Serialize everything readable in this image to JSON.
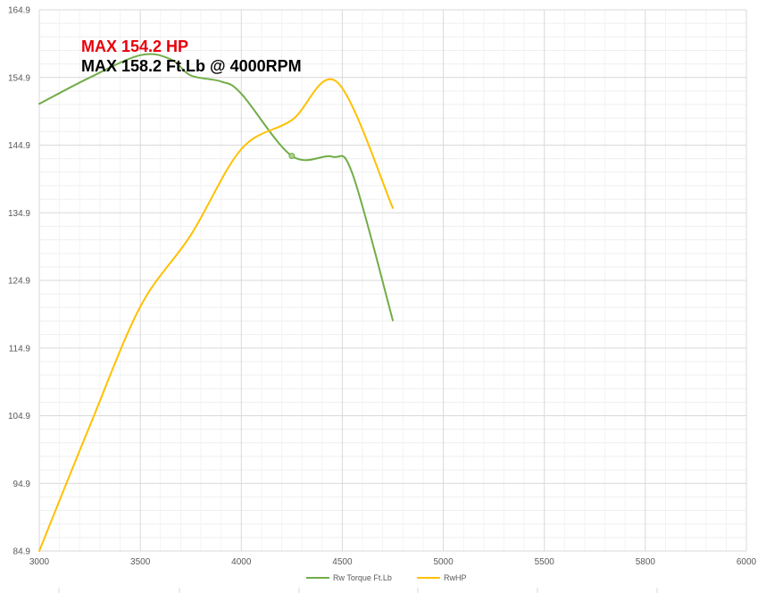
{
  "chart_data": {
    "type": "line",
    "title": "",
    "xlabel": "",
    "ylabel": "",
    "xlim": [
      3000,
      6000
    ],
    "ylim": [
      84.9,
      164.9
    ],
    "x_ticks": [
      "3000",
      "3500",
      "4000",
      "4500",
      "5000",
      "5500",
      "5800",
      "6000"
    ],
    "y_ticks": [
      "84.9",
      "94.9",
      "104.9",
      "114.9",
      "124.9",
      "134.9",
      "144.9",
      "154.9",
      "164.9"
    ],
    "grid": true,
    "legend_position": "bottom",
    "annotations": [
      {
        "text": "MAX 154.2 HP",
        "color": "#e8000b"
      },
      {
        "text": "MAX 158.2 Ft.Lb @ 4000RPM",
        "color": "#000000"
      }
    ],
    "series": [
      {
        "name": "Rw Torque Ft.Lb",
        "color": "#70ad47",
        "points": [
          [
            0,
            151.0
          ],
          [
            0.5,
            154.9
          ],
          [
            1,
            158.2
          ],
          [
            1.3,
            157.6
          ],
          [
            1.5,
            155.2
          ],
          [
            1.8,
            154.3
          ],
          [
            2,
            152.5
          ],
          [
            2.5,
            143.3
          ],
          [
            2.9,
            143.2
          ],
          [
            3.1,
            140.7
          ],
          [
            3.5,
            119.0
          ]
        ],
        "marker_index": 7
      },
      {
        "name": "RwHP",
        "color": "#ffc000",
        "points": [
          [
            0,
            84.9
          ],
          [
            0.5,
            103.4
          ],
          [
            1,
            121.0
          ],
          [
            1.5,
            131.6
          ],
          [
            2,
            144.3
          ],
          [
            2.5,
            148.6
          ],
          [
            2.95,
            154.2
          ],
          [
            3.5,
            135.6
          ]
        ]
      }
    ]
  }
}
